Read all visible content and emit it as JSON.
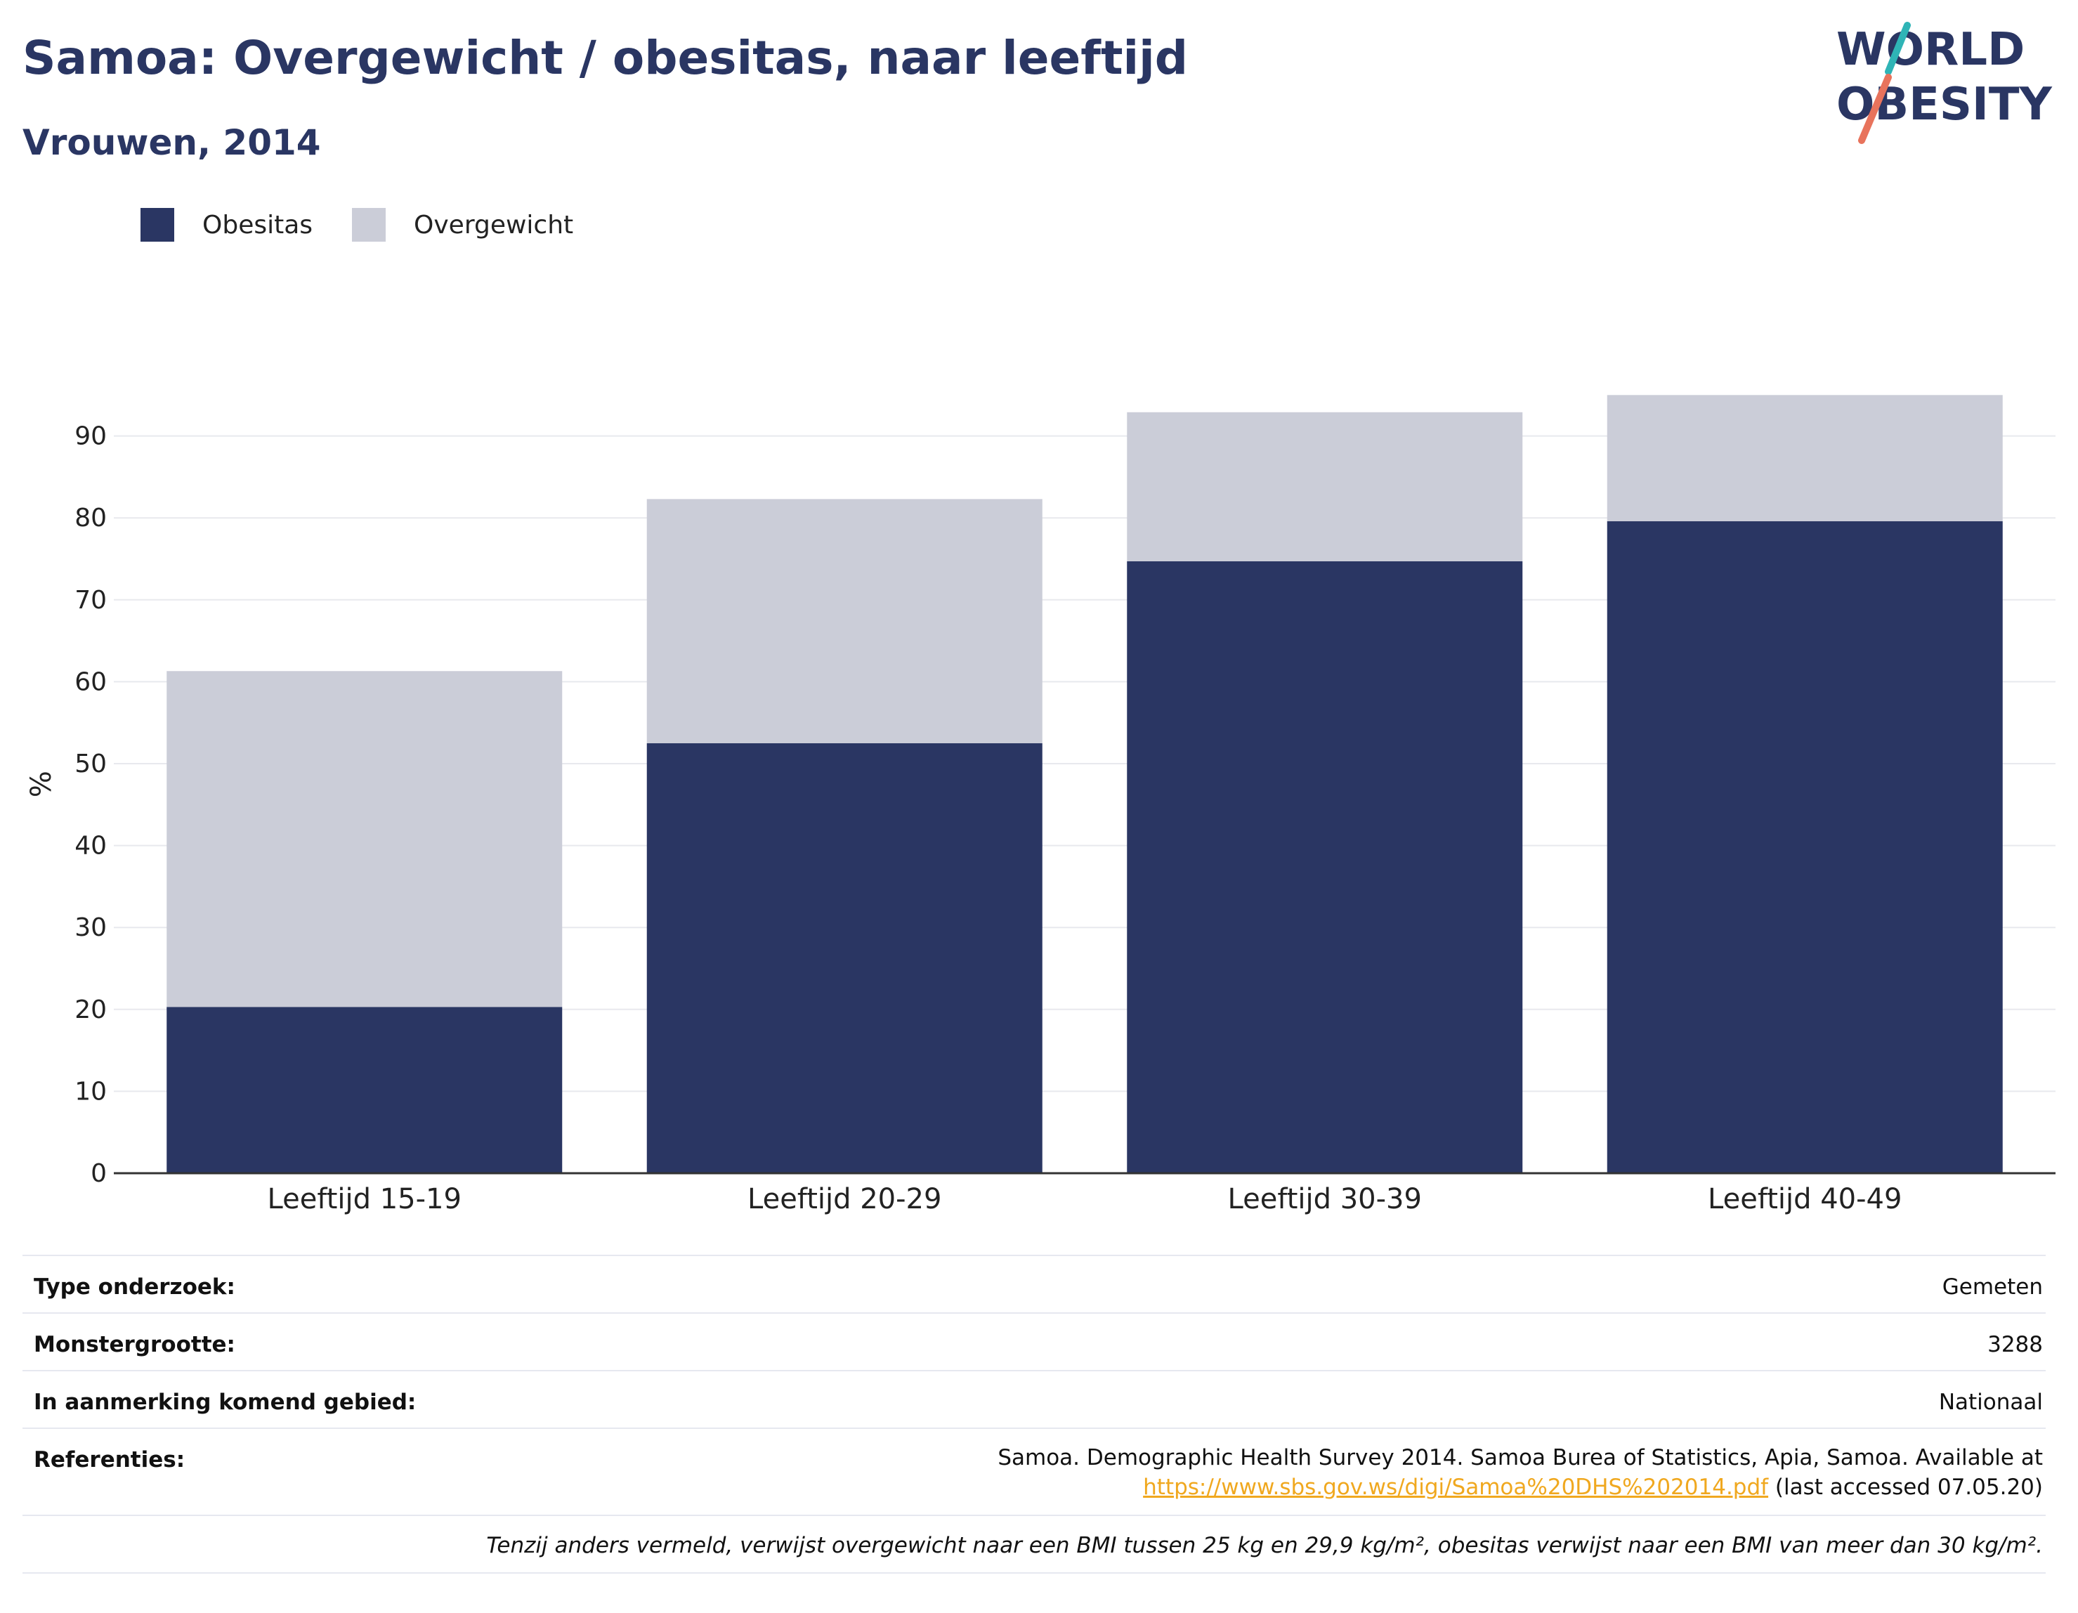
{
  "header": {
    "title": "Samoa: Overgewicht / obesitas, naar leeftijd",
    "subtitle": "Vrouwen, 2014"
  },
  "logo": {
    "line1": "WORLD",
    "line2": "OBESITY",
    "colors": {
      "text": "#2a3663",
      "slash_top": "#2fb4b6",
      "slash_bottom": "#e8735c"
    }
  },
  "legend": [
    {
      "label": "Obesitas",
      "color": "#2a3663"
    },
    {
      "label": "Overgewicht",
      "color": "#cbcdd8"
    }
  ],
  "chart_data": {
    "type": "bar",
    "stacked": true,
    "categories": [
      "Leeftijd 15-19",
      "Leeftijd 20-29",
      "Leeftijd 30-39",
      "Leeftijd 40-49"
    ],
    "series": [
      {
        "name": "Obesitas",
        "values": [
          20.3,
          52.5,
          74.7,
          79.6
        ],
        "color": "#2a3663"
      },
      {
        "name": "Overgewicht",
        "values": [
          41.0,
          29.8,
          18.2,
          15.4
        ],
        "color": "#cbcdd8"
      }
    ],
    "ylabel": "%",
    "ylim": [
      0,
      95
    ],
    "yticks": [
      0,
      10,
      20,
      30,
      40,
      50,
      60,
      70,
      80,
      90
    ],
    "grid": true,
    "legend_position": "top-left"
  },
  "meta": {
    "survey_type": {
      "label": "Type onderzoek:",
      "value": "Gemeten"
    },
    "sample_size": {
      "label": "Monstergrootte:",
      "value": "3288"
    },
    "area": {
      "label": "In aanmerking komend gebied:",
      "value": "Nationaal"
    },
    "references": {
      "label": "Referenties:",
      "text_before": "Samoa. Demographic Health Survey 2014. Samoa Burea of Statistics, Apia, Samoa. Available at",
      "link": "https://www.sbs.gov.ws/digi/Samoa%20DHS%202014.pdf",
      "text_after": " (last accessed 07.05.20)"
    },
    "footnote": "Tenzij anders vermeld, verwijst overgewicht naar een BMI tussen 25 kg en 29,9 kg/m², obesitas verwijst naar een BMI van meer dan 30 kg/m²."
  }
}
